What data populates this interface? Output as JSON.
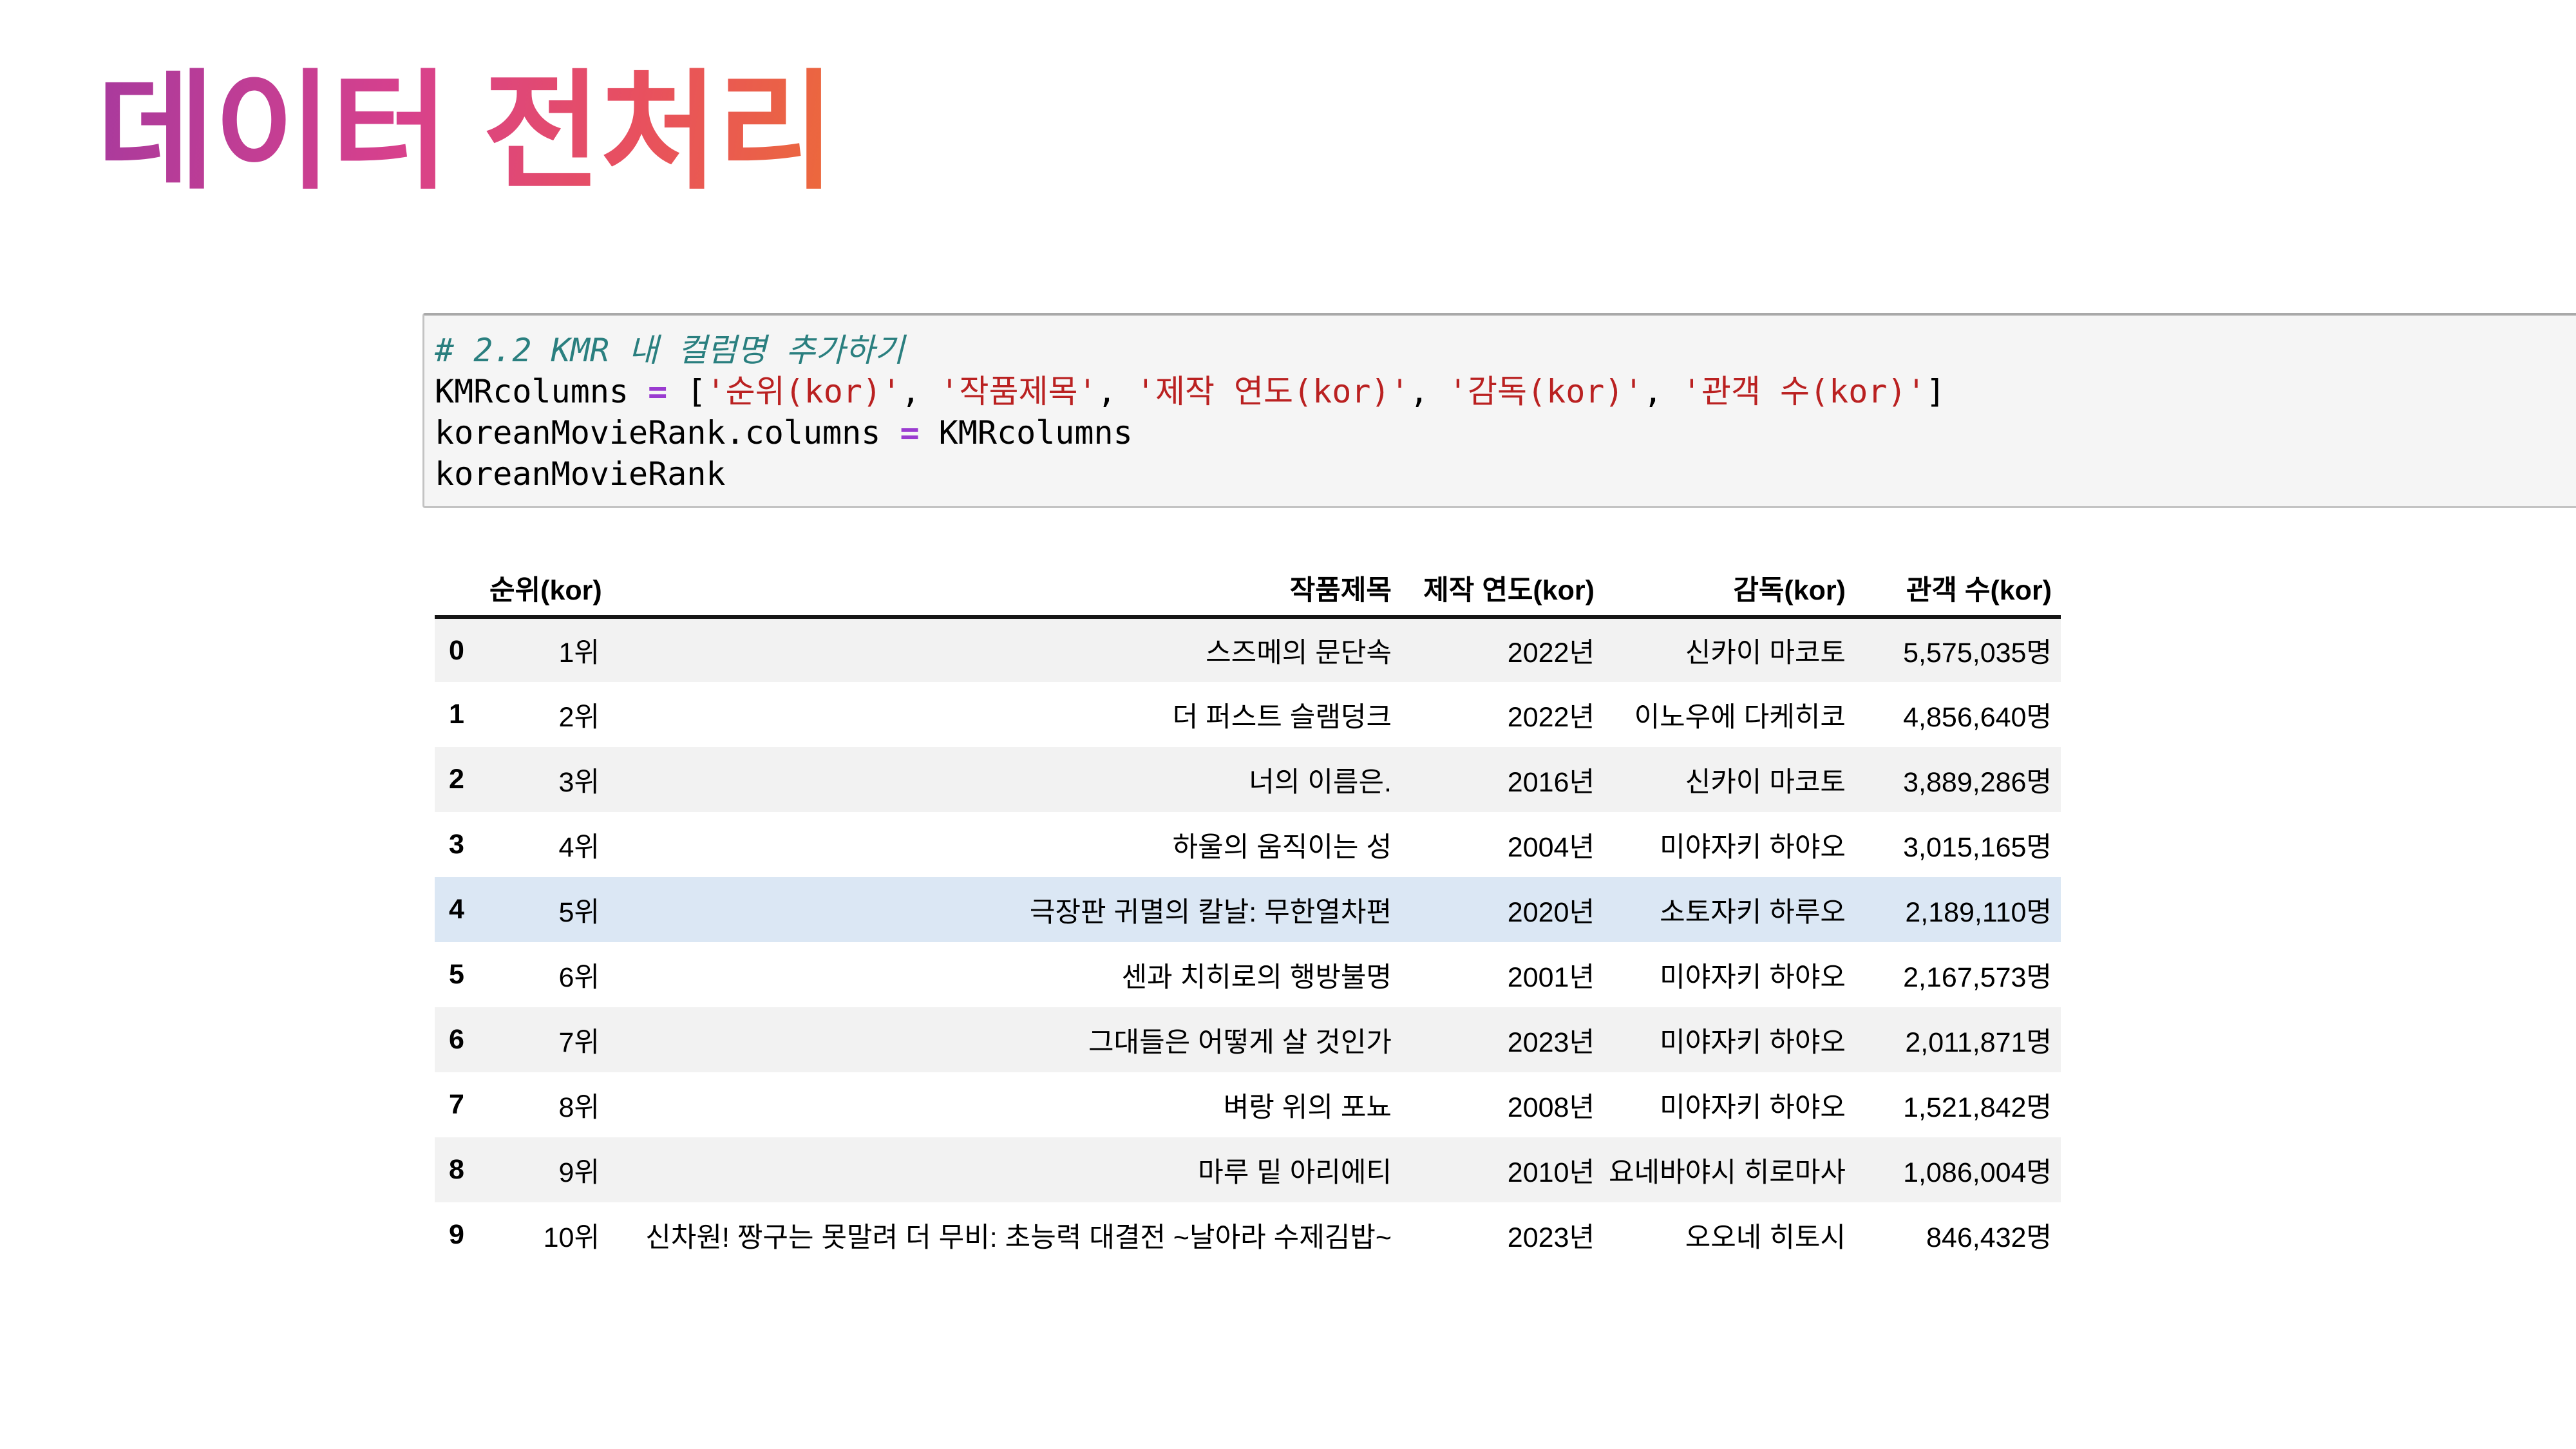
{
  "title": {
    "text": "데이터 전처리"
  },
  "colors": {
    "title_gradient_from": "#a83a9d",
    "title_gradient_mid1": "#d8418c",
    "title_gradient_mid2": "#e8505f",
    "title_gradient_to": "#ec6a3a",
    "code_background": "#f5f5f5",
    "comment": "#2a7f7f",
    "string": "#ba2121",
    "operator": "#9a3bd0",
    "row_stripe": "#f2f2f2",
    "row_highlight": "#dbe7f4"
  },
  "code": {
    "lines": [
      [
        {
          "type": "comment",
          "text": "# 2.2 KMR 내 컬럼명 추가하기"
        }
      ],
      [
        {
          "type": "plain",
          "text": "KMRcolumns "
        },
        {
          "type": "op",
          "text": "="
        },
        {
          "type": "plain",
          "text": " ["
        },
        {
          "type": "str",
          "text": "'순위(kor)'"
        },
        {
          "type": "plain",
          "text": ", "
        },
        {
          "type": "str",
          "text": "'작품제목'"
        },
        {
          "type": "plain",
          "text": ", "
        },
        {
          "type": "str",
          "text": "'제작 연도(kor)'"
        },
        {
          "type": "plain",
          "text": ", "
        },
        {
          "type": "str",
          "text": "'감독(kor)'"
        },
        {
          "type": "plain",
          "text": ", "
        },
        {
          "type": "str",
          "text": "'관객 수(kor)'"
        },
        {
          "type": "plain",
          "text": "]"
        }
      ],
      [
        {
          "type": "plain",
          "text": "koreanMovieRank.columns "
        },
        {
          "type": "op",
          "text": "="
        },
        {
          "type": "plain",
          "text": " KMRcolumns"
        }
      ],
      [
        {
          "type": "plain",
          "text": "koreanMovieRank"
        }
      ]
    ]
  },
  "table": {
    "headers": [
      "",
      "순위(kor)",
      "작품제목",
      "제작 연도(kor)",
      "감독(kor)",
      "관객 수(kor)"
    ],
    "rows": [
      {
        "index": "0",
        "rank": "1위",
        "title": "스즈메의 문단속",
        "year": "2022년",
        "director": "신카이 마코토",
        "audience": "5,575,035명",
        "highlight": false
      },
      {
        "index": "1",
        "rank": "2위",
        "title": "더 퍼스트 슬램덩크",
        "year": "2022년",
        "director": "이노우에 다케히코",
        "audience": "4,856,640명",
        "highlight": false
      },
      {
        "index": "2",
        "rank": "3위",
        "title": "너의 이름은.",
        "year": "2016년",
        "director": "신카이 마코토",
        "audience": "3,889,286명",
        "highlight": false
      },
      {
        "index": "3",
        "rank": "4위",
        "title": "하울의 움직이는 성",
        "year": "2004년",
        "director": "미야자키 하야오",
        "audience": "3,015,165명",
        "highlight": false
      },
      {
        "index": "4",
        "rank": "5위",
        "title": "극장판 귀멸의 칼날: 무한열차편",
        "year": "2020년",
        "director": "소토자키 하루오",
        "audience": "2,189,110명",
        "highlight": true
      },
      {
        "index": "5",
        "rank": "6위",
        "title": "센과 치히로의 행방불명",
        "year": "2001년",
        "director": "미야자키 하야오",
        "audience": "2,167,573명",
        "highlight": false
      },
      {
        "index": "6",
        "rank": "7위",
        "title": "그대들은 어떻게 살 것인가",
        "year": "2023년",
        "director": "미야자키 하야오",
        "audience": "2,011,871명",
        "highlight": false
      },
      {
        "index": "7",
        "rank": "8위",
        "title": "벼랑 위의 포뇨",
        "year": "2008년",
        "director": "미야자키 하야오",
        "audience": "1,521,842명",
        "highlight": false
      },
      {
        "index": "8",
        "rank": "9위",
        "title": "마루 밑 아리에티",
        "year": "2010년",
        "director": "요네바야시 히로마사",
        "audience": "1,086,004명",
        "highlight": false
      },
      {
        "index": "9",
        "rank": "10위",
        "title": "신차원! 짱구는 못말려 더 무비: 초능력 대결전 ~날아라 수제김밥~",
        "year": "2023년",
        "director": "오오네 히토시",
        "audience": "846,432명",
        "highlight": false
      }
    ]
  }
}
